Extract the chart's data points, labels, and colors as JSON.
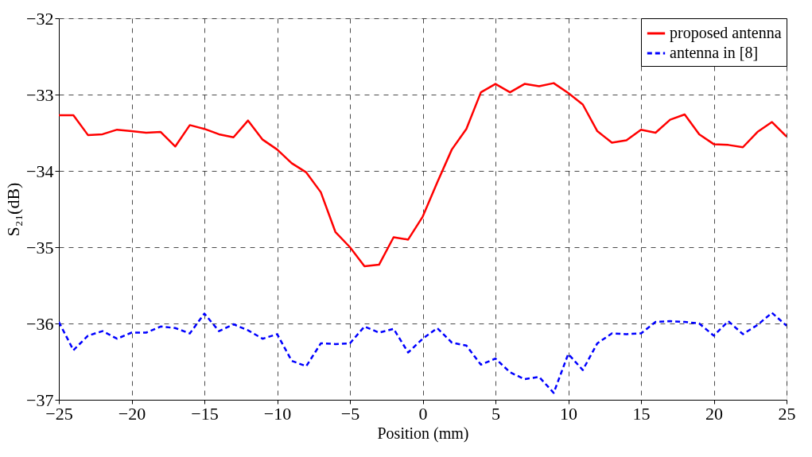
{
  "chart_data": {
    "type": "line",
    "xlabel": "Position (mm)",
    "ylabel": "S₂₁(dB)",
    "x": [
      -25,
      -24,
      -23,
      -22,
      -21,
      -20,
      -19,
      -18,
      -17,
      -16,
      -15,
      -14,
      -13,
      -12,
      -11,
      -10,
      -9,
      -8,
      -7,
      -6,
      -5,
      -4,
      -3,
      -2,
      -1,
      0,
      1,
      2,
      3,
      4,
      5,
      6,
      7,
      8,
      9,
      10,
      11,
      12,
      13,
      14,
      15,
      16,
      17,
      18,
      19,
      20,
      21,
      22,
      23,
      24,
      25
    ],
    "series": [
      {
        "name": "proposed antenna",
        "color": "#ff0000",
        "line_style": "solid",
        "values": [
          -33.27,
          -33.27,
          -33.53,
          -33.52,
          -33.46,
          -33.48,
          -33.5,
          -33.49,
          -33.68,
          -33.4,
          -33.45,
          -33.52,
          -33.56,
          -33.34,
          -33.59,
          -33.72,
          -33.9,
          -34.02,
          -34.28,
          -34.8,
          -35.0,
          -35.25,
          -35.23,
          -34.87,
          -34.9,
          -34.6,
          -34.15,
          -33.72,
          -33.45,
          -32.97,
          -32.86,
          -32.97,
          -32.86,
          -32.89,
          -32.85,
          -32.98,
          -33.13,
          -33.48,
          -33.63,
          -33.6,
          -33.46,
          -33.5,
          -33.33,
          -33.26,
          -33.52,
          -33.65,
          -33.66,
          -33.69,
          -33.49,
          -33.36,
          -33.55
        ]
      },
      {
        "name": "antenna in [8]",
        "color": "#0000ff",
        "line_style": "dashed",
        "values": [
          -35.98,
          -36.35,
          -36.16,
          -36.1,
          -36.2,
          -36.12,
          -36.12,
          -36.04,
          -36.06,
          -36.13,
          -35.87,
          -36.1,
          -36.01,
          -36.09,
          -36.2,
          -36.14,
          -36.49,
          -36.56,
          -36.26,
          -36.27,
          -36.26,
          -36.04,
          -36.12,
          -36.07,
          -36.38,
          -36.2,
          -36.06,
          -36.25,
          -36.29,
          -36.54,
          -36.46,
          -36.64,
          -36.73,
          -36.7,
          -36.91,
          -36.4,
          -36.61,
          -36.26,
          -36.13,
          -36.14,
          -36.13,
          -35.98,
          -35.97,
          -35.98,
          -36.0,
          -36.16,
          -35.97,
          -36.14,
          -36.02,
          -35.86,
          -36.03
        ]
      }
    ],
    "xlim": [
      -25,
      25
    ],
    "xticks": [
      -25,
      -20,
      -15,
      -10,
      -5,
      0,
      5,
      10,
      15,
      20,
      25
    ],
    "ylim": [
      -37,
      -32
    ],
    "yticks": [
      -37,
      -36,
      -35,
      -34,
      -33,
      -32
    ],
    "grid": true,
    "legend": "top right",
    "marker": "none"
  }
}
